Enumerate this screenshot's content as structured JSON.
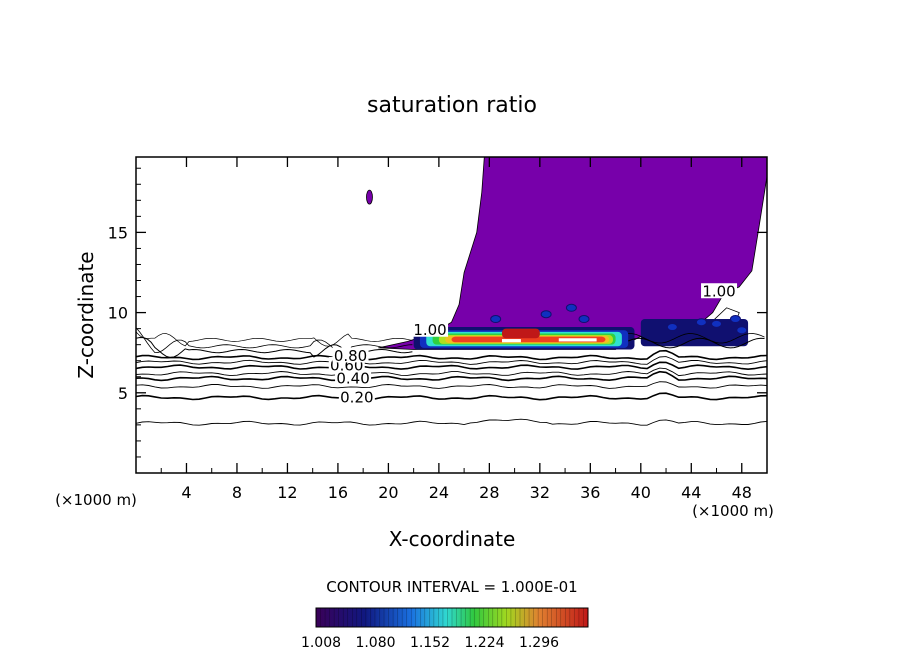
{
  "chart_data": {
    "type": "heatmap",
    "title": "saturation ratio",
    "xlabel": "X-coordinate",
    "ylabel": "Z-coordinate",
    "x_unit": "(×1000 m)",
    "x_ticks": [
      4,
      8,
      12,
      16,
      20,
      24,
      28,
      32,
      36,
      40,
      44,
      48
    ],
    "y_ticks": [
      5,
      10,
      15
    ],
    "xlim": [
      0,
      50
    ],
    "ylim": [
      0,
      19.7
    ],
    "contour_interval_label": "CONTOUR INTERVAL = 1.000E-01",
    "contour_labels": [
      {
        "text": "0.20",
        "x": 17.5,
        "y": 4.7
      },
      {
        "text": "0.40",
        "x": 17.2,
        "y": 5.9
      },
      {
        "text": "0.60",
        "x": 16.7,
        "y": 6.7
      },
      {
        "text": "0.80",
        "x": 17.0,
        "y": 7.3
      },
      {
        "text": "1.00",
        "x": 23.3,
        "y": 8.9
      },
      {
        "text": "1.00",
        "x": 46.2,
        "y": 11.3
      }
    ],
    "contour_levels_drawn": [
      {
        "level": 0.1,
        "z": 3.1
      },
      {
        "level": 0.2,
        "z": 4.7
      },
      {
        "level": 0.3,
        "z": 5.4
      },
      {
        "level": 0.4,
        "z": 5.9
      },
      {
        "level": 0.5,
        "z": 6.2
      },
      {
        "level": 0.6,
        "z": 6.6
      },
      {
        "level": 0.7,
        "z": 6.9
      },
      {
        "level": 0.8,
        "z": 7.2
      }
    ],
    "colorbar": {
      "ticks": [
        "1.008",
        "1.080",
        "1.152",
        "1.224",
        "1.296"
      ],
      "colors": [
        "#3a0058",
        "#101070",
        "#1030c0",
        "#1a90e8",
        "#30e0d0",
        "#30d040",
        "#b0e020",
        "#f0c020",
        "#f04020",
        "#c01818"
      ]
    },
    "supersaturated_region": {
      "color": "#7700aa",
      "description_level": "1.008",
      "x_range": [
        18.5,
        50
      ],
      "z_range": [
        7.7,
        19.7
      ]
    }
  }
}
